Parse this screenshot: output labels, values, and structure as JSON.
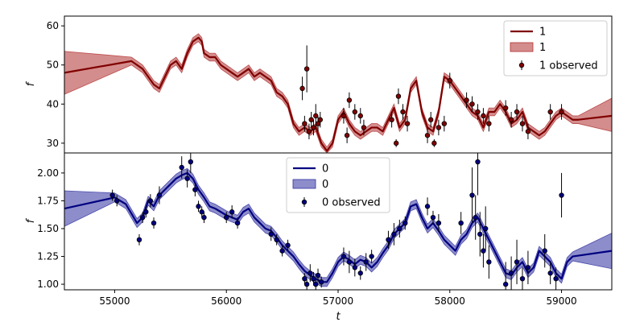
{
  "chart_data": [
    {
      "type": "line",
      "panel": "top",
      "xlabel": "",
      "ylabel": "f",
      "xlim": [
        54550,
        59450
      ],
      "ylim": [
        27.5,
        62.5
      ],
      "yticks": [
        30,
        40,
        50,
        60
      ],
      "legend_position": "top-right",
      "color": "#800000",
      "band_color": "#b03030",
      "legend": [
        "1",
        "1",
        "1 observed"
      ],
      "mean": {
        "x": [
          54550,
          55150,
          55250,
          55350,
          55400,
          55450,
          55500,
          55550,
          55600,
          55650,
          55700,
          55750,
          55780,
          55800,
          55850,
          55900,
          55950,
          56000,
          56050,
          56100,
          56150,
          56200,
          56250,
          56300,
          56350,
          56400,
          56450,
          56500,
          56550,
          56600,
          56650,
          56700,
          56750,
          56800,
          56850,
          56900,
          56950,
          57000,
          57050,
          57100,
          57150,
          57200,
          57250,
          57300,
          57350,
          57400,
          57450,
          57500,
          57550,
          57600,
          57650,
          57700,
          57750,
          57800,
          57850,
          57900,
          57950,
          58000,
          58050,
          58100,
          58150,
          58200,
          58250,
          58300,
          58350,
          58400,
          58450,
          58500,
          58550,
          58600,
          58650,
          58700,
          58750,
          58800,
          58850,
          58900,
          58950,
          59000,
          59050,
          59100,
          59150,
          59450
        ],
        "y": [
          48,
          51,
          49,
          45,
          44,
          47,
          50,
          51,
          49,
          53,
          56,
          57,
          56,
          53,
          52,
          52,
          50,
          49,
          48,
          47,
          48,
          49,
          47,
          48,
          47,
          46,
          43,
          42,
          40,
          35,
          33,
          34,
          33,
          34,
          30,
          28,
          30,
          36,
          38,
          35,
          33,
          32,
          33,
          34,
          34,
          33,
          36,
          39,
          34,
          36,
          44,
          46,
          38,
          34,
          33,
          38,
          47,
          46,
          44,
          42,
          40,
          38,
          37,
          34,
          38,
          38,
          40,
          38,
          35,
          36,
          38,
          34,
          33,
          32,
          33,
          35,
          37,
          38,
          37,
          36,
          36,
          37
        ]
      },
      "band": {
        "upper": [
          53.5,
          52,
          50,
          46,
          45,
          48,
          51,
          52,
          50,
          54,
          57,
          58,
          57,
          54,
          53,
          53,
          51,
          50,
          49,
          48,
          49,
          50,
          48,
          49,
          48,
          47,
          44,
          43,
          41,
          36,
          34,
          35,
          34,
          35,
          31,
          29,
          31,
          37,
          39,
          36,
          34,
          33,
          34,
          35,
          35,
          34,
          37,
          40,
          35,
          37,
          45,
          47,
          39,
          35,
          34,
          39,
          48,
          47,
          45,
          43,
          41,
          39,
          38,
          35,
          39,
          39,
          41,
          39,
          36,
          37,
          39,
          35,
          34,
          33,
          34,
          36,
          38,
          39,
          38,
          37,
          37,
          41.5
        ],
        "lower": [
          42.5,
          50,
          48,
          44,
          43,
          46,
          49,
          50,
          48,
          52,
          55,
          56,
          55,
          52,
          51,
          51,
          49,
          48,
          47,
          46,
          47,
          48,
          46,
          47,
          46,
          45,
          42,
          41,
          39,
          34,
          32,
          33,
          32,
          33,
          29,
          27.5,
          29,
          35,
          37,
          34,
          32,
          31,
          32,
          33,
          33,
          32,
          35,
          38,
          33,
          35,
          43,
          45,
          37,
          33,
          32,
          37,
          46,
          45,
          43,
          41,
          39,
          37,
          36,
          33,
          37,
          37,
          39,
          37,
          34,
          35,
          37,
          33,
          32,
          31,
          32,
          34,
          36,
          37,
          36,
          35,
          35,
          33
        ]
      },
      "observed": {
        "x": [
          56680,
          56700,
          56720,
          56740,
          56760,
          56780,
          56800,
          56820,
          56840,
          57050,
          57080,
          57100,
          57150,
          57200,
          57230,
          57480,
          57520,
          57540,
          57580,
          57620,
          57800,
          57830,
          57860,
          57900,
          57950,
          58000,
          58150,
          58200,
          58250,
          58300,
          58350,
          58500,
          58550,
          58600,
          58650,
          58700,
          58900,
          59000
        ],
        "y": [
          44,
          35,
          49,
          33,
          36,
          34,
          37,
          35,
          36,
          37,
          32,
          41,
          38,
          37,
          34,
          36,
          30,
          42,
          38,
          35,
          32,
          36,
          30,
          34,
          35,
          46,
          41,
          40,
          38,
          37,
          35,
          39,
          36,
          38,
          35,
          33,
          38,
          38
        ],
        "err": [
          3,
          2,
          6,
          2,
          2,
          2,
          3,
          2,
          2,
          2,
          2,
          2,
          2,
          2,
          2,
          2,
          1,
          2,
          2,
          2,
          2,
          2,
          1,
          2,
          2,
          2,
          2,
          2,
          2,
          2,
          2,
          2,
          2,
          2,
          2,
          2,
          2,
          2
        ]
      }
    },
    {
      "type": "line",
      "panel": "bottom",
      "xlabel": "t",
      "ylabel": "f",
      "xlim": [
        54550,
        59450
      ],
      "ylim": [
        0.95,
        2.18
      ],
      "xticks": [
        55000,
        56000,
        57000,
        58000,
        59000
      ],
      "yticks": [
        1.0,
        1.25,
        1.5,
        1.75,
        2.0
      ],
      "legend_position": "upper-center",
      "color": "#000080",
      "band_color": "#3030a0",
      "legend": [
        "0",
        "0",
        "0 observed"
      ],
      "mean": {
        "x": [
          54550,
          55000,
          55100,
          55200,
          55250,
          55300,
          55350,
          55400,
          55450,
          55500,
          55550,
          55600,
          55650,
          55700,
          55750,
          55800,
          55850,
          55900,
          55950,
          56000,
          56050,
          56100,
          56150,
          56200,
          56250,
          56300,
          56350,
          56400,
          56450,
          56500,
          56550,
          56600,
          56650,
          56700,
          56750,
          56800,
          56850,
          56900,
          56950,
          57000,
          57050,
          57100,
          57150,
          57200,
          57250,
          57300,
          57350,
          57400,
          57450,
          57500,
          57550,
          57600,
          57650,
          57700,
          57750,
          57800,
          57850,
          57900,
          57950,
          58000,
          58050,
          58100,
          58150,
          58200,
          58250,
          58300,
          58350,
          58400,
          58450,
          58500,
          58550,
          58600,
          58650,
          58700,
          58750,
          58800,
          58850,
          58900,
          58950,
          59000,
          59050,
          59100,
          59450
        ],
        "y": [
          1.68,
          1.78,
          1.72,
          1.55,
          1.6,
          1.75,
          1.7,
          1.8,
          1.85,
          1.9,
          1.95,
          1.98,
          2.0,
          1.95,
          1.85,
          1.78,
          1.7,
          1.68,
          1.65,
          1.62,
          1.6,
          1.58,
          1.65,
          1.68,
          1.6,
          1.55,
          1.5,
          1.48,
          1.42,
          1.35,
          1.3,
          1.25,
          1.18,
          1.12,
          1.08,
          1.05,
          1.02,
          1.02,
          1.1,
          1.2,
          1.25,
          1.22,
          1.18,
          1.22,
          1.2,
          1.15,
          1.2,
          1.28,
          1.35,
          1.45,
          1.5,
          1.55,
          1.7,
          1.72,
          1.6,
          1.5,
          1.55,
          1.48,
          1.4,
          1.35,
          1.3,
          1.4,
          1.45,
          1.55,
          1.6,
          1.5,
          1.4,
          1.3,
          1.2,
          1.1,
          1.08,
          1.15,
          1.2,
          1.1,
          1.15,
          1.3,
          1.25,
          1.2,
          1.1,
          1.05,
          1.2,
          1.25,
          1.3
        ]
      },
      "band": {
        "upper": [
          1.84,
          1.82,
          1.76,
          1.59,
          1.64,
          1.79,
          1.74,
          1.84,
          1.89,
          1.94,
          1.99,
          2.02,
          2.04,
          1.99,
          1.89,
          1.82,
          1.74,
          1.72,
          1.69,
          1.66,
          1.64,
          1.62,
          1.69,
          1.72,
          1.64,
          1.59,
          1.54,
          1.52,
          1.46,
          1.39,
          1.34,
          1.29,
          1.22,
          1.16,
          1.12,
          1.09,
          1.06,
          1.06,
          1.14,
          1.24,
          1.29,
          1.26,
          1.22,
          1.26,
          1.24,
          1.19,
          1.24,
          1.32,
          1.39,
          1.49,
          1.54,
          1.59,
          1.74,
          1.76,
          1.64,
          1.54,
          1.59,
          1.52,
          1.44,
          1.39,
          1.34,
          1.44,
          1.49,
          1.59,
          1.64,
          1.54,
          1.44,
          1.34,
          1.24,
          1.14,
          1.12,
          1.19,
          1.24,
          1.14,
          1.19,
          1.34,
          1.29,
          1.24,
          1.14,
          1.09,
          1.24,
          1.29,
          1.46
        ],
        "lower": [
          1.52,
          1.74,
          1.68,
          1.51,
          1.56,
          1.71,
          1.66,
          1.76,
          1.81,
          1.86,
          1.91,
          1.94,
          1.96,
          1.91,
          1.81,
          1.74,
          1.66,
          1.64,
          1.61,
          1.58,
          1.56,
          1.54,
          1.61,
          1.64,
          1.56,
          1.51,
          1.46,
          1.44,
          1.38,
          1.31,
          1.26,
          1.21,
          1.14,
          1.08,
          1.04,
          1.01,
          0.98,
          0.98,
          1.06,
          1.16,
          1.21,
          1.18,
          1.14,
          1.18,
          1.16,
          1.11,
          1.16,
          1.24,
          1.31,
          1.41,
          1.46,
          1.51,
          1.66,
          1.68,
          1.56,
          1.46,
          1.51,
          1.44,
          1.36,
          1.31,
          1.26,
          1.36,
          1.41,
          1.51,
          1.56,
          1.46,
          1.36,
          1.26,
          1.16,
          1.06,
          1.04,
          1.11,
          1.16,
          1.06,
          1.11,
          1.26,
          1.21,
          1.16,
          1.06,
          1.01,
          1.16,
          1.21,
          1.14
        ]
      },
      "observed": {
        "x": [
          54980,
          55020,
          55220,
          55250,
          55280,
          55320,
          55350,
          55400,
          55600,
          55650,
          55680,
          55720,
          55750,
          55780,
          55800,
          56000,
          56050,
          56100,
          56400,
          56450,
          56500,
          56550,
          56700,
          56720,
          56750,
          56780,
          56800,
          56820,
          56850,
          57050,
          57100,
          57150,
          57200,
          57250,
          57300,
          57450,
          57500,
          57550,
          57600,
          57800,
          57850,
          57900,
          58100,
          58200,
          58230,
          58250,
          58270,
          58300,
          58320,
          58350,
          58500,
          58550,
          58600,
          58650,
          58700,
          58850,
          58900,
          58950,
          59000
        ],
        "y": [
          1.8,
          1.75,
          1.4,
          1.6,
          1.65,
          1.75,
          1.55,
          1.8,
          2.05,
          1.95,
          2.1,
          1.85,
          1.7,
          1.65,
          1.6,
          1.6,
          1.65,
          1.55,
          1.45,
          1.4,
          1.3,
          1.35,
          1.05,
          1.0,
          1.1,
          1.05,
          1.0,
          1.08,
          1.02,
          1.25,
          1.2,
          1.15,
          1.1,
          1.2,
          1.25,
          1.4,
          1.45,
          1.5,
          1.55,
          1.7,
          1.6,
          1.55,
          1.55,
          1.8,
          1.6,
          2.1,
          1.45,
          1.3,
          1.5,
          1.2,
          1.0,
          1.1,
          1.2,
          1.05,
          1.15,
          1.3,
          1.1,
          1.05,
          1.8
        ],
        "err": [
          0.05,
          0.05,
          0.05,
          0.05,
          0.05,
          0.06,
          0.05,
          0.08,
          0.1,
          0.08,
          0.1,
          0.06,
          0.05,
          0.05,
          0.05,
          0.05,
          0.06,
          0.05,
          0.06,
          0.05,
          0.05,
          0.05,
          0.05,
          0.05,
          0.08,
          0.06,
          0.05,
          0.06,
          0.05,
          0.08,
          0.1,
          0.08,
          0.06,
          0.08,
          0.06,
          0.08,
          0.1,
          0.08,
          0.06,
          0.08,
          0.06,
          0.08,
          0.1,
          0.25,
          0.2,
          0.3,
          0.2,
          0.15,
          0.2,
          0.15,
          0.2,
          0.15,
          0.2,
          0.1,
          0.15,
          0.15,
          0.1,
          0.1,
          0.2
        ]
      }
    }
  ]
}
